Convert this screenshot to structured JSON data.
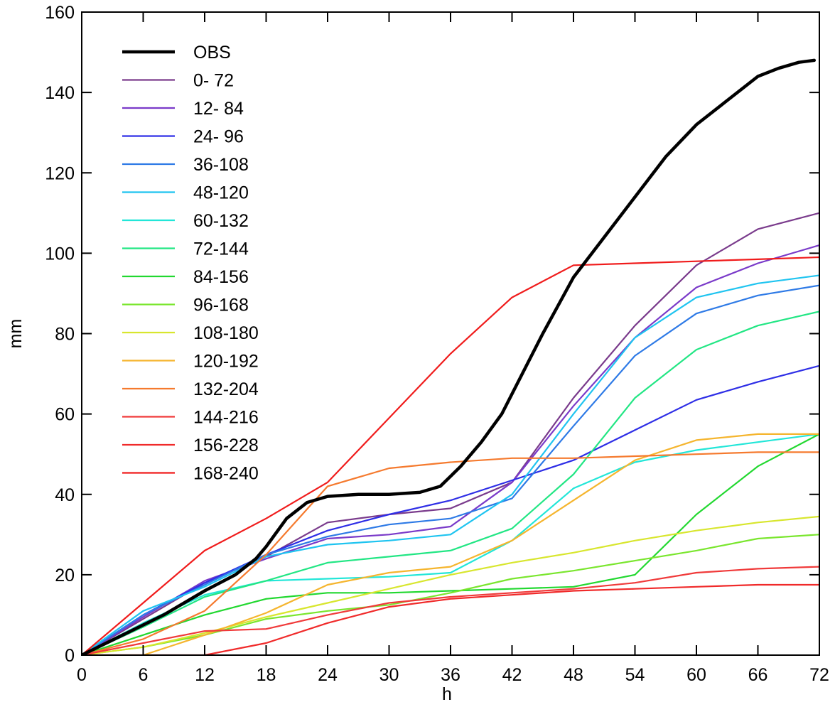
{
  "chart_data": {
    "type": "line",
    "xlabel": "h",
    "ylabel": "mm",
    "xlim": [
      0,
      72
    ],
    "ylim": [
      0,
      160
    ],
    "x_ticks": [
      0,
      6,
      12,
      18,
      24,
      30,
      36,
      42,
      48,
      54,
      60,
      66,
      72
    ],
    "y_ticks": [
      0,
      20,
      40,
      60,
      80,
      100,
      120,
      140,
      160
    ],
    "grid": false,
    "legend_position": "top-left",
    "series": [
      {
        "name": "OBS",
        "color": "#000000",
        "x": [
          0,
          4,
          8,
          12,
          15,
          17,
          18,
          20,
          22,
          24,
          27,
          30,
          33,
          35,
          37,
          39,
          41,
          43,
          45,
          48,
          51,
          54,
          57,
          60,
          63,
          66,
          68,
          70,
          71.5
        ],
        "y": [
          0,
          5,
          10,
          16,
          20,
          24,
          27,
          34,
          38,
          39.5,
          40,
          40,
          40.5,
          42,
          47,
          53,
          60,
          70,
          80,
          94,
          104,
          114,
          124,
          132,
          138,
          144,
          146,
          147.5,
          148
        ]
      },
      {
        "name": " 0- 72",
        "color": "#7a3b8c",
        "x": [
          0,
          6,
          12,
          18,
          24,
          30,
          36,
          42,
          48,
          54,
          60,
          66,
          72
        ],
        "y": [
          0,
          9,
          18,
          24.5,
          33,
          35,
          36.5,
          43,
          64,
          82,
          97,
          106,
          110
        ]
      },
      {
        "name": "12- 84",
        "color": "#7a3ac9",
        "x": [
          0,
          6,
          12,
          18,
          24,
          30,
          36,
          42,
          48,
          54,
          60,
          66,
          72
        ],
        "y": [
          0,
          9.5,
          18.5,
          24,
          29,
          30,
          32,
          43,
          62,
          79,
          91.5,
          97.5,
          102
        ]
      },
      {
        "name": "24- 96",
        "color": "#2e2ee6",
        "x": [
          0,
          6,
          12,
          18,
          24,
          30,
          36,
          42,
          48,
          54,
          60,
          66,
          72
        ],
        "y": [
          0,
          10,
          18,
          25,
          31,
          35,
          38.5,
          43.5,
          48.5,
          56,
          63.5,
          68,
          72
        ]
      },
      {
        "name": "36-108",
        "color": "#2e7ae6",
        "x": [
          0,
          6,
          12,
          18,
          24,
          30,
          36,
          42,
          48,
          54,
          60,
          66,
          72
        ],
        "y": [
          0,
          10,
          17.5,
          25,
          29.5,
          32.5,
          34,
          39,
          57,
          74.5,
          85,
          89.5,
          92
        ]
      },
      {
        "name": "48-120",
        "color": "#1fc4f0",
        "x": [
          0,
          6,
          12,
          18,
          24,
          30,
          36,
          42,
          48,
          54,
          60,
          66,
          72
        ],
        "y": [
          0,
          11,
          17,
          24.5,
          27.5,
          28.5,
          30,
          40,
          60,
          79,
          89,
          92.5,
          94.5
        ]
      },
      {
        "name": "60-132",
        "color": "#22e6d8",
        "x": [
          0,
          6,
          12,
          18,
          24,
          30,
          36,
          42,
          48,
          54,
          60,
          66,
          72
        ],
        "y": [
          0,
          8,
          15,
          18.5,
          19,
          19.5,
          20.5,
          28.5,
          41.5,
          48,
          51,
          53,
          55
        ]
      },
      {
        "name": "72-144",
        "color": "#22e684",
        "x": [
          0,
          6,
          12,
          18,
          24,
          30,
          36,
          42,
          48,
          54,
          60,
          66,
          72
        ],
        "y": [
          0,
          7,
          14.5,
          18.5,
          23,
          24.5,
          26,
          31.5,
          45,
          64,
          76,
          82,
          85.5
        ]
      },
      {
        "name": "84-156",
        "color": "#22d830",
        "x": [
          0,
          6,
          12,
          18,
          24,
          30,
          36,
          42,
          48,
          54,
          60,
          66,
          72
        ],
        "y": [
          0,
          5,
          10,
          14,
          15.5,
          15.5,
          16,
          16.5,
          17,
          20,
          35,
          47,
          55
        ]
      },
      {
        "name": "96-168",
        "color": "#7ae62e",
        "x": [
          0,
          6,
          12,
          18,
          24,
          30,
          36,
          42,
          48,
          54,
          60,
          66,
          72
        ],
        "y": [
          0,
          2,
          5,
          9,
          11,
          12.5,
          15.5,
          19,
          21,
          23.5,
          26,
          29,
          30
        ]
      },
      {
        "name": "108-180",
        "color": "#d8e62e",
        "x": [
          0,
          6,
          12,
          18,
          24,
          30,
          36,
          42,
          48,
          54,
          60,
          66,
          72
        ],
        "y": [
          0,
          2,
          5.5,
          9.5,
          13,
          16.5,
          20,
          23,
          25.5,
          28.5,
          31,
          33,
          34.5
        ]
      },
      {
        "name": "120-192",
        "color": "#f5b52e",
        "x": [
          0,
          6,
          12,
          18,
          24,
          30,
          36,
          42,
          48,
          54,
          60,
          66,
          72
        ],
        "y": [
          0,
          0,
          5,
          10.5,
          17.5,
          20.5,
          22,
          28.5,
          38.5,
          48.5,
          53.5,
          55,
          55
        ]
      },
      {
        "name": "132-204",
        "color": "#f57a2e",
        "x": [
          0,
          6,
          12,
          18,
          24,
          30,
          36,
          42,
          48,
          54,
          60,
          66,
          72
        ],
        "y": [
          0,
          4,
          11,
          25,
          42,
          46.5,
          48,
          49,
          49,
          49.5,
          50,
          50.5,
          50.5
        ]
      },
      {
        "name": "144-216",
        "color": "#f03a3a",
        "x": [
          0,
          6,
          12,
          18,
          24,
          30,
          36,
          42,
          48,
          54,
          60,
          66,
          72
        ],
        "y": [
          0,
          3,
          6,
          6.5,
          10,
          13,
          14.5,
          15.5,
          16.5,
          18,
          20.5,
          21.5,
          22
        ]
      },
      {
        "name": "156-228",
        "color": "#f02a2a",
        "x": [
          0,
          6,
          12,
          18,
          24,
          30,
          36,
          42,
          48,
          54,
          60,
          66,
          72
        ],
        "y": [
          0,
          0,
          0,
          3,
          8,
          12,
          14,
          15,
          16,
          16.5,
          17,
          17.5,
          17.5
        ]
      },
      {
        "name": "168-240",
        "color": "#f01c1c",
        "x": [
          0,
          6,
          12,
          18,
          24,
          30,
          36,
          42,
          48,
          54,
          60,
          66,
          72
        ],
        "y": [
          0,
          13,
          26,
          34,
          43,
          59,
          75,
          89,
          97,
          97.5,
          98,
          98.5,
          99
        ]
      }
    ]
  }
}
